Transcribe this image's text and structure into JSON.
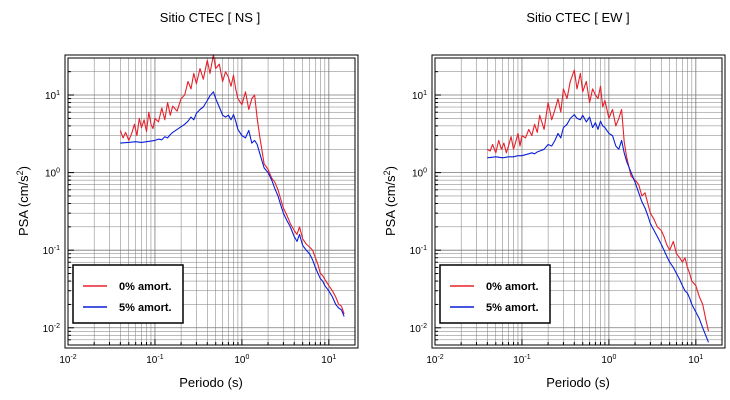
{
  "figure": {
    "colors": {
      "series_0": "#e8202a",
      "series_5": "#0a1fd8",
      "frame": "#000000",
      "grid": "#7a7a7a"
    }
  },
  "chart_data": [
    {
      "type": "line",
      "title": "Sitio CTEC [ NS ]",
      "xlabel": "Periodo (s)",
      "ylabel_main": "PSA (cm/s",
      "ylabel_sup": "2",
      "ylabel_end": ")",
      "x_scale": "log",
      "y_scale": "log",
      "xlim": [
        0.01,
        20
      ],
      "ylim": [
        0.006,
        30
      ],
      "x_ticks": [
        {
          "base": "10",
          "exp": "-2",
          "value": 0.01
        },
        {
          "base": "10",
          "exp": "-1",
          "value": 0.1
        },
        {
          "base": "10",
          "exp": "0",
          "value": 1
        },
        {
          "base": "10",
          "exp": "1",
          "value": 10
        }
      ],
      "y_ticks": [
        {
          "base": "10",
          "exp": "-2",
          "value": 0.01
        },
        {
          "base": "10",
          "exp": "-1",
          "value": 0.1
        },
        {
          "base": "10",
          "exp": "0",
          "value": 1
        },
        {
          "base": "10",
          "exp": "1",
          "value": 10
        }
      ],
      "grid": true,
      "legend_position": "bottom-left",
      "series": [
        {
          "name": "0% amort.",
          "color": "#e8202a",
          "x": [
            0.04,
            0.043,
            0.046,
            0.05,
            0.054,
            0.058,
            0.062,
            0.066,
            0.07,
            0.075,
            0.08,
            0.085,
            0.09,
            0.095,
            0.1,
            0.11,
            0.12,
            0.13,
            0.14,
            0.15,
            0.16,
            0.18,
            0.2,
            0.22,
            0.24,
            0.26,
            0.28,
            0.3,
            0.33,
            0.36,
            0.4,
            0.43,
            0.47,
            0.5,
            0.55,
            0.6,
            0.65,
            0.7,
            0.75,
            0.8,
            0.85,
            0.9,
            1.0,
            1.1,
            1.2,
            1.3,
            1.4,
            1.5,
            1.6,
            1.8,
            2.0,
            2.2,
            2.4,
            2.6,
            2.8,
            3.0,
            3.3,
            3.6,
            4.0,
            4.3,
            4.6,
            5.0,
            5.5,
            6.0,
            6.5,
            7.0,
            7.5,
            8.0,
            8.5,
            9.0,
            10.0,
            11.0,
            12.0,
            13.0,
            14.0,
            15.0
          ],
          "y": [
            3.5,
            2.8,
            3.3,
            2.6,
            3.2,
            4.2,
            3.0,
            5.0,
            3.8,
            4.8,
            3.4,
            6.0,
            4.2,
            3.7,
            5.0,
            4.5,
            6.8,
            4.8,
            8.0,
            5.5,
            7.2,
            6.2,
            9.0,
            10.0,
            15.0,
            12.0,
            19.0,
            14.0,
            22.0,
            16.0,
            28.0,
            19.0,
            33.0,
            22.0,
            25.0,
            15.0,
            20.0,
            17.0,
            13.0,
            18.0,
            12.0,
            9.0,
            7.5,
            11.0,
            6.5,
            9.0,
            10.0,
            5.0,
            3.0,
            1.3,
            1.1,
            0.85,
            0.75,
            0.6,
            0.45,
            0.35,
            0.28,
            0.22,
            0.18,
            0.16,
            0.2,
            0.14,
            0.12,
            0.11,
            0.1,
            0.08,
            0.065,
            0.05,
            0.047,
            0.042,
            0.035,
            0.03,
            0.025,
            0.02,
            0.019,
            0.015
          ]
        },
        {
          "name": "5% amort.",
          "color": "#0a1fd8",
          "x": [
            0.04,
            0.05,
            0.06,
            0.07,
            0.08,
            0.09,
            0.1,
            0.11,
            0.12,
            0.13,
            0.14,
            0.15,
            0.16,
            0.18,
            0.2,
            0.22,
            0.24,
            0.26,
            0.28,
            0.3,
            0.33,
            0.36,
            0.4,
            0.43,
            0.47,
            0.5,
            0.55,
            0.6,
            0.65,
            0.7,
            0.75,
            0.8,
            0.85,
            0.9,
            1.0,
            1.1,
            1.2,
            1.3,
            1.4,
            1.5,
            1.6,
            1.8,
            2.0,
            2.2,
            2.4,
            2.6,
            2.8,
            3.0,
            3.3,
            3.6,
            4.0,
            4.3,
            4.6,
            5.0,
            5.5,
            6.0,
            6.5,
            7.0,
            7.5,
            8.0,
            8.5,
            9.0,
            10.0,
            11.0,
            12.0,
            13.0,
            14.0,
            15.0
          ],
          "y": [
            2.4,
            2.45,
            2.5,
            2.45,
            2.5,
            2.55,
            2.6,
            2.7,
            2.65,
            2.9,
            2.8,
            3.1,
            3.3,
            3.6,
            3.9,
            4.2,
            4.6,
            5.2,
            4.8,
            5.8,
            6.5,
            7.0,
            8.5,
            9.8,
            11.0,
            9.0,
            7.0,
            5.5,
            5.2,
            5.5,
            4.8,
            5.6,
            4.6,
            3.6,
            3.0,
            2.8,
            3.5,
            2.4,
            2.6,
            2.3,
            1.8,
            1.15,
            1.0,
            0.8,
            0.62,
            0.5,
            0.38,
            0.3,
            0.24,
            0.2,
            0.15,
            0.13,
            0.16,
            0.115,
            0.1,
            0.09,
            0.075,
            0.06,
            0.05,
            0.043,
            0.04,
            0.035,
            0.03,
            0.025,
            0.02,
            0.018,
            0.017,
            0.014
          ]
        }
      ]
    },
    {
      "type": "line",
      "title": "Sitio CTEC [ EW ]",
      "xlabel": "Periodo (s)",
      "ylabel_main": "PSA (cm/s",
      "ylabel_sup": "2",
      "ylabel_end": ")",
      "x_scale": "log",
      "y_scale": "log",
      "xlim": [
        0.01,
        20
      ],
      "ylim": [
        0.006,
        30
      ],
      "x_ticks": [
        {
          "base": "10",
          "exp": "-2",
          "value": 0.01
        },
        {
          "base": "10",
          "exp": "-1",
          "value": 0.1
        },
        {
          "base": "10",
          "exp": "0",
          "value": 1
        },
        {
          "base": "10",
          "exp": "1",
          "value": 10
        }
      ],
      "y_ticks": [
        {
          "base": "10",
          "exp": "-2",
          "value": 0.01
        },
        {
          "base": "10",
          "exp": "-1",
          "value": 0.1
        },
        {
          "base": "10",
          "exp": "0",
          "value": 1
        },
        {
          "base": "10",
          "exp": "1",
          "value": 10
        }
      ],
      "grid": true,
      "legend_position": "bottom-left",
      "series": [
        {
          "name": "0% amort.",
          "color": "#e8202a",
          "x": [
            0.04,
            0.043,
            0.046,
            0.05,
            0.054,
            0.058,
            0.062,
            0.066,
            0.07,
            0.075,
            0.08,
            0.085,
            0.09,
            0.095,
            0.1,
            0.11,
            0.12,
            0.13,
            0.14,
            0.15,
            0.16,
            0.18,
            0.2,
            0.22,
            0.24,
            0.26,
            0.28,
            0.3,
            0.33,
            0.36,
            0.4,
            0.43,
            0.47,
            0.5,
            0.55,
            0.6,
            0.65,
            0.7,
            0.75,
            0.8,
            0.85,
            0.9,
            1.0,
            1.1,
            1.2,
            1.3,
            1.4,
            1.5,
            1.6,
            1.8,
            2.0,
            2.2,
            2.4,
            2.6,
            2.8,
            3.0,
            3.3,
            3.6,
            4.0,
            4.3,
            4.6,
            5.0,
            5.5,
            6.0,
            6.5,
            7.0,
            7.5,
            8.0,
            8.5,
            9.0,
            10.0,
            11.0,
            12.0,
            13.0,
            14.0
          ],
          "y": [
            2.0,
            1.9,
            2.3,
            1.8,
            2.6,
            2.0,
            2.4,
            1.8,
            2.2,
            2.9,
            2.0,
            2.5,
            3.2,
            2.2,
            3.0,
            2.8,
            3.6,
            3.0,
            4.2,
            3.3,
            5.5,
            3.6,
            8.0,
            4.8,
            6.5,
            9.0,
            6.0,
            12.0,
            9.0,
            15.0,
            21.0,
            12.0,
            19.0,
            11.0,
            15.0,
            8.0,
            12.0,
            10.0,
            9.0,
            13.0,
            7.0,
            8.5,
            5.0,
            6.5,
            4.0,
            5.0,
            6.5,
            2.5,
            1.6,
            0.9,
            0.8,
            0.7,
            0.5,
            0.55,
            0.4,
            0.3,
            0.25,
            0.2,
            0.18,
            0.15,
            0.12,
            0.1,
            0.13,
            0.09,
            0.08,
            0.07,
            0.08,
            0.06,
            0.05,
            0.04,
            0.035,
            0.025,
            0.02,
            0.013,
            0.009
          ]
        },
        {
          "name": "5% amort.",
          "color": "#0a1fd8",
          "x": [
            0.04,
            0.05,
            0.06,
            0.07,
            0.08,
            0.09,
            0.1,
            0.11,
            0.12,
            0.13,
            0.14,
            0.15,
            0.16,
            0.18,
            0.2,
            0.22,
            0.24,
            0.26,
            0.28,
            0.3,
            0.33,
            0.36,
            0.4,
            0.43,
            0.47,
            0.5,
            0.55,
            0.6,
            0.65,
            0.7,
            0.75,
            0.8,
            0.85,
            0.9,
            1.0,
            1.1,
            1.2,
            1.3,
            1.4,
            1.5,
            1.6,
            1.8,
            2.0,
            2.2,
            2.4,
            2.6,
            2.8,
            3.0,
            3.3,
            3.6,
            4.0,
            4.3,
            4.6,
            5.0,
            5.5,
            6.0,
            6.5,
            7.0,
            7.5,
            8.0,
            8.5,
            9.0,
            10.0,
            11.0,
            12.0,
            13.0,
            14.0
          ],
          "y": [
            1.55,
            1.6,
            1.55,
            1.6,
            1.6,
            1.65,
            1.65,
            1.7,
            1.75,
            1.8,
            1.75,
            1.85,
            1.9,
            2.0,
            2.3,
            2.2,
            2.6,
            3.2,
            2.8,
            3.8,
            4.2,
            5.0,
            5.6,
            5.0,
            4.8,
            5.5,
            4.5,
            5.2,
            3.8,
            4.4,
            3.6,
            4.6,
            4.0,
            3.8,
            3.2,
            3.0,
            2.2,
            2.0,
            2.6,
            1.8,
            1.4,
            1.0,
            0.75,
            0.55,
            0.42,
            0.35,
            0.28,
            0.22,
            0.18,
            0.15,
            0.12,
            0.1,
            0.085,
            0.07,
            0.06,
            0.05,
            0.042,
            0.035,
            0.03,
            0.028,
            0.024,
            0.02,
            0.016,
            0.013,
            0.01,
            0.008,
            0.0065
          ]
        }
      ]
    }
  ]
}
